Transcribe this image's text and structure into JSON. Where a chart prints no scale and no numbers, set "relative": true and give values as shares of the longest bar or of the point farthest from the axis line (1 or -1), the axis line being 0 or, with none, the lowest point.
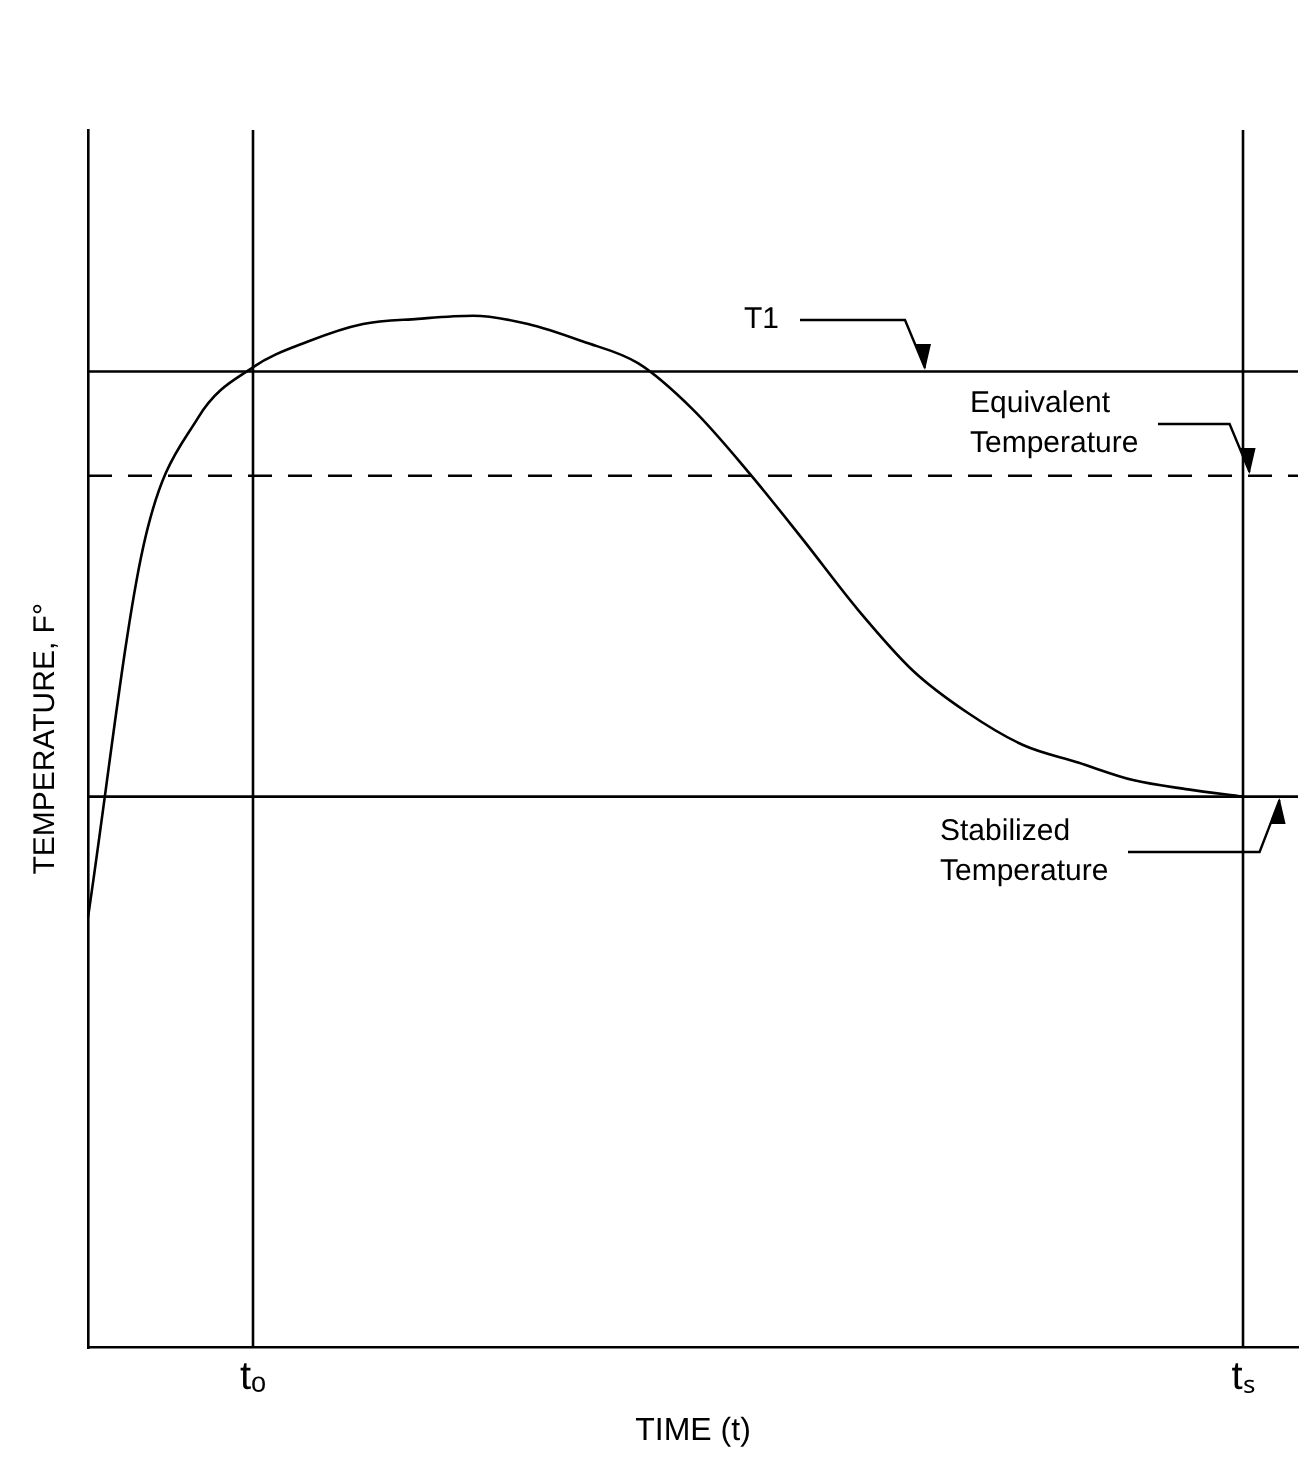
{
  "chart_data": {
    "type": "line",
    "relative": true,
    "xlabel": "TIME (t)",
    "ylabel": "TEMPERATURE, F°",
    "categories": [
      null,
      null,
      null,
      "tₒ",
      null,
      null,
      null,
      null,
      null,
      null,
      null,
      null,
      null,
      null,
      null,
      null,
      null,
      null,
      null,
      null,
      null,
      "tₛ",
      null
    ],
    "legend": false,
    "marker": "none",
    "line_style": "solid",
    "series": [
      {
        "color": "#000000",
        "values": [
          0.417,
          0.775,
          0.901,
          0.95,
          0.975,
          0.992,
          0.997,
          1,
          0.992,
          0.975,
          0.954,
          0.909,
          0.849,
          0.783,
          0.715,
          0.656,
          0.615,
          0.584,
          0.567,
          0.55,
          0.541,
          0.534,
          null
        ]
      }
    ],
    "ref_lines": [
      {
        "axis": "y",
        "value": 0.946,
        "label": "T1",
        "color": "#000000",
        "line_style": "solid"
      },
      {
        "axis": "y",
        "value": 0.845,
        "label": "Equivalent Temperature",
        "color": "#000000",
        "line_style": "dashed"
      },
      {
        "axis": "y",
        "value": 0.534,
        "label": "Stabilized Temperature",
        "color": "#000000",
        "line_style": "solid"
      },
      {
        "axis": "x",
        "value": "tₒ",
        "color": "#000000",
        "line_style": "solid"
      },
      {
        "axis": "x",
        "value": "tₛ",
        "color": "#000000",
        "line_style": "solid"
      }
    ]
  }
}
